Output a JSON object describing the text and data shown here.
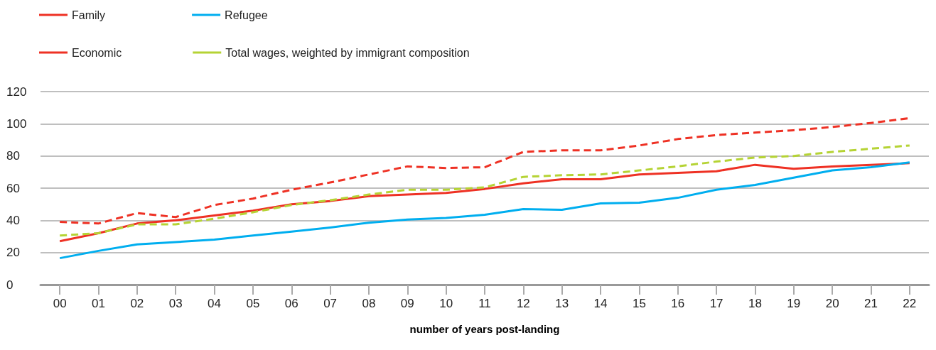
{
  "chart_data": {
    "type": "line",
    "xlabel": "number of years post-landing",
    "categories": [
      "00",
      "01",
      "02",
      "03",
      "04",
      "05",
      "06",
      "07",
      "08",
      "09",
      "10",
      "11",
      "12",
      "13",
      "14",
      "15",
      "16",
      "17",
      "18",
      "19",
      "20",
      "21",
      "22"
    ],
    "series": [
      {
        "name": "Family",
        "color": "#ee3124",
        "line_style": "solid",
        "values": [
          27,
          32,
          38,
          40,
          43,
          46,
          50,
          52,
          55,
          56,
          57,
          59.5,
          63,
          65.5,
          65.5,
          68.5,
          69.5,
          70.5,
          74.5,
          72,
          73.5,
          74.5,
          75.5
        ]
      },
      {
        "name": "Refugee",
        "color": "#00aeef",
        "line_style": "solid",
        "values": [
          16.5,
          21,
          25,
          26.5,
          28,
          30.5,
          33,
          35.5,
          38.5,
          40.5,
          41.5,
          43.5,
          47,
          46.5,
          50.5,
          51,
          54,
          59,
          62,
          66.5,
          71,
          73,
          76
        ]
      },
      {
        "name": "Economic",
        "color": "#ee3124",
        "line_style": "dashed",
        "values": [
          39,
          38,
          44.5,
          42,
          49.5,
          53.5,
          59,
          63.5,
          68.5,
          73.5,
          72.5,
          73,
          82.5,
          83.5,
          83.5,
          86.5,
          90.5,
          93,
          94.5,
          96,
          98,
          100.5,
          103.5
        ]
      },
      {
        "name": "Total wages, weighted by immigrant composition",
        "color": "#b5d334",
        "line_style": "dashed",
        "values": [
          30.5,
          32,
          37.5,
          37.5,
          41,
          45,
          49.5,
          52.5,
          56,
          59,
          59,
          60.5,
          67,
          68,
          68.5,
          71,
          73.5,
          76.5,
          79,
          80,
          82.5,
          84.5,
          86.5
        ]
      }
    ],
    "ylim": [
      0,
      120
    ],
    "yticks": [
      0,
      20,
      40,
      60,
      80,
      100,
      120
    ],
    "grid": "y",
    "legend": "top left",
    "marker": "none"
  }
}
